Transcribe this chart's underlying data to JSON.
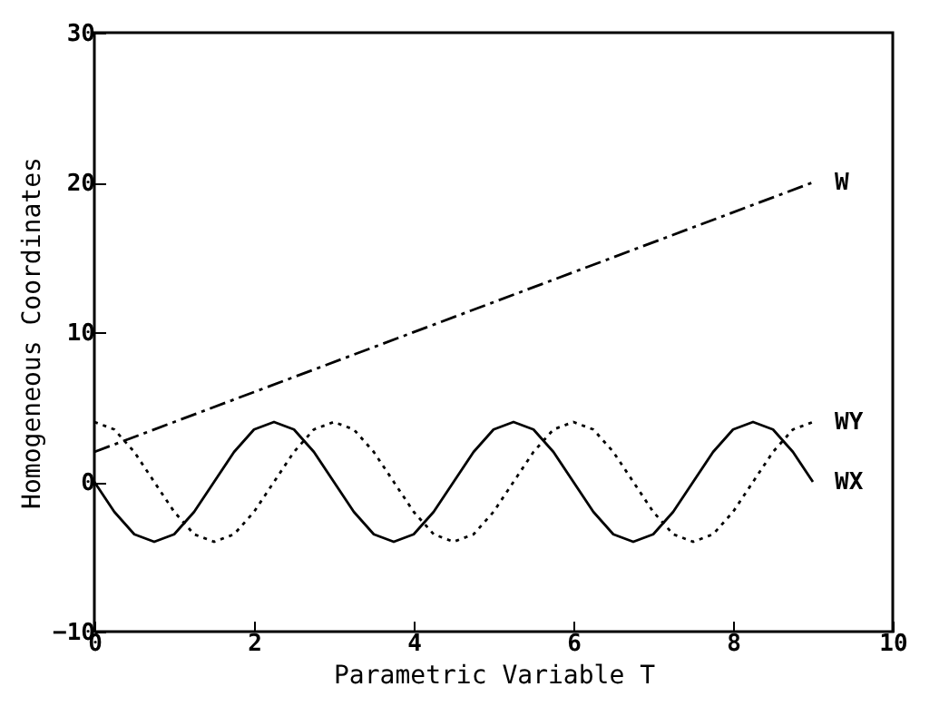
{
  "chart_data": {
    "type": "line",
    "xlabel": "Parametric Variable T",
    "ylabel": "Homogeneous Coordinates",
    "xlim": [
      0,
      10
    ],
    "ylim": [
      -10,
      30
    ],
    "xticks": [
      0,
      2,
      4,
      6,
      8,
      10
    ],
    "yticks": [
      -10,
      0,
      10,
      20,
      30
    ],
    "grid": false,
    "legend": false,
    "marker": "none",
    "series": [
      {
        "name": "W",
        "color": "#000000",
        "line_style": "dashed",
        "x": [
          0,
          9
        ],
        "values": [
          2,
          20
        ]
      },
      {
        "name": "WY",
        "color": "#000000",
        "line_style": "dotted",
        "x": [
          0,
          0.25,
          0.5,
          0.75,
          1,
          1.25,
          1.5,
          1.75,
          2,
          2.25,
          2.5,
          2.75,
          3,
          3.25,
          3.5,
          3.75,
          4,
          4.25,
          4.5,
          4.75,
          5,
          5.25,
          5.5,
          5.75,
          6,
          6.25,
          6.5,
          6.75,
          7,
          7.25,
          7.5,
          7.75,
          8,
          8.25,
          8.5,
          8.75,
          9
        ],
        "values": [
          4,
          3.5,
          2,
          0,
          -2,
          -3.5,
          -4,
          -3.5,
          -2,
          0,
          2,
          3.5,
          4,
          3.5,
          2,
          0,
          -2,
          -3.5,
          -4,
          -3.5,
          -2,
          0,
          2,
          3.5,
          4,
          3.5,
          2,
          0,
          -2,
          -3.5,
          -4,
          -3.5,
          -2,
          0,
          2,
          3.5,
          4
        ]
      },
      {
        "name": "WX",
        "color": "#000000",
        "line_style": "solid",
        "x": [
          0,
          0.25,
          0.5,
          0.75,
          1,
          1.25,
          1.5,
          1.75,
          2,
          2.25,
          2.5,
          2.75,
          3,
          3.25,
          3.5,
          3.75,
          4,
          4.25,
          4.5,
          4.75,
          5,
          5.25,
          5.5,
          5.75,
          6,
          6.25,
          6.5,
          6.75,
          7,
          7.25,
          7.5,
          7.75,
          8,
          8.25,
          8.5,
          8.75,
          9
        ],
        "values": [
          0,
          -2,
          -3.5,
          -4,
          -3.5,
          -2,
          0,
          2,
          3.5,
          4,
          3.5,
          2,
          0,
          -2,
          -3.5,
          -4,
          -3.5,
          -2,
          0,
          2,
          3.5,
          4,
          3.5,
          2,
          0,
          -2,
          -3.5,
          -4,
          -3.5,
          -2,
          0,
          2,
          3.5,
          4,
          3.5,
          2,
          0
        ]
      }
    ]
  }
}
